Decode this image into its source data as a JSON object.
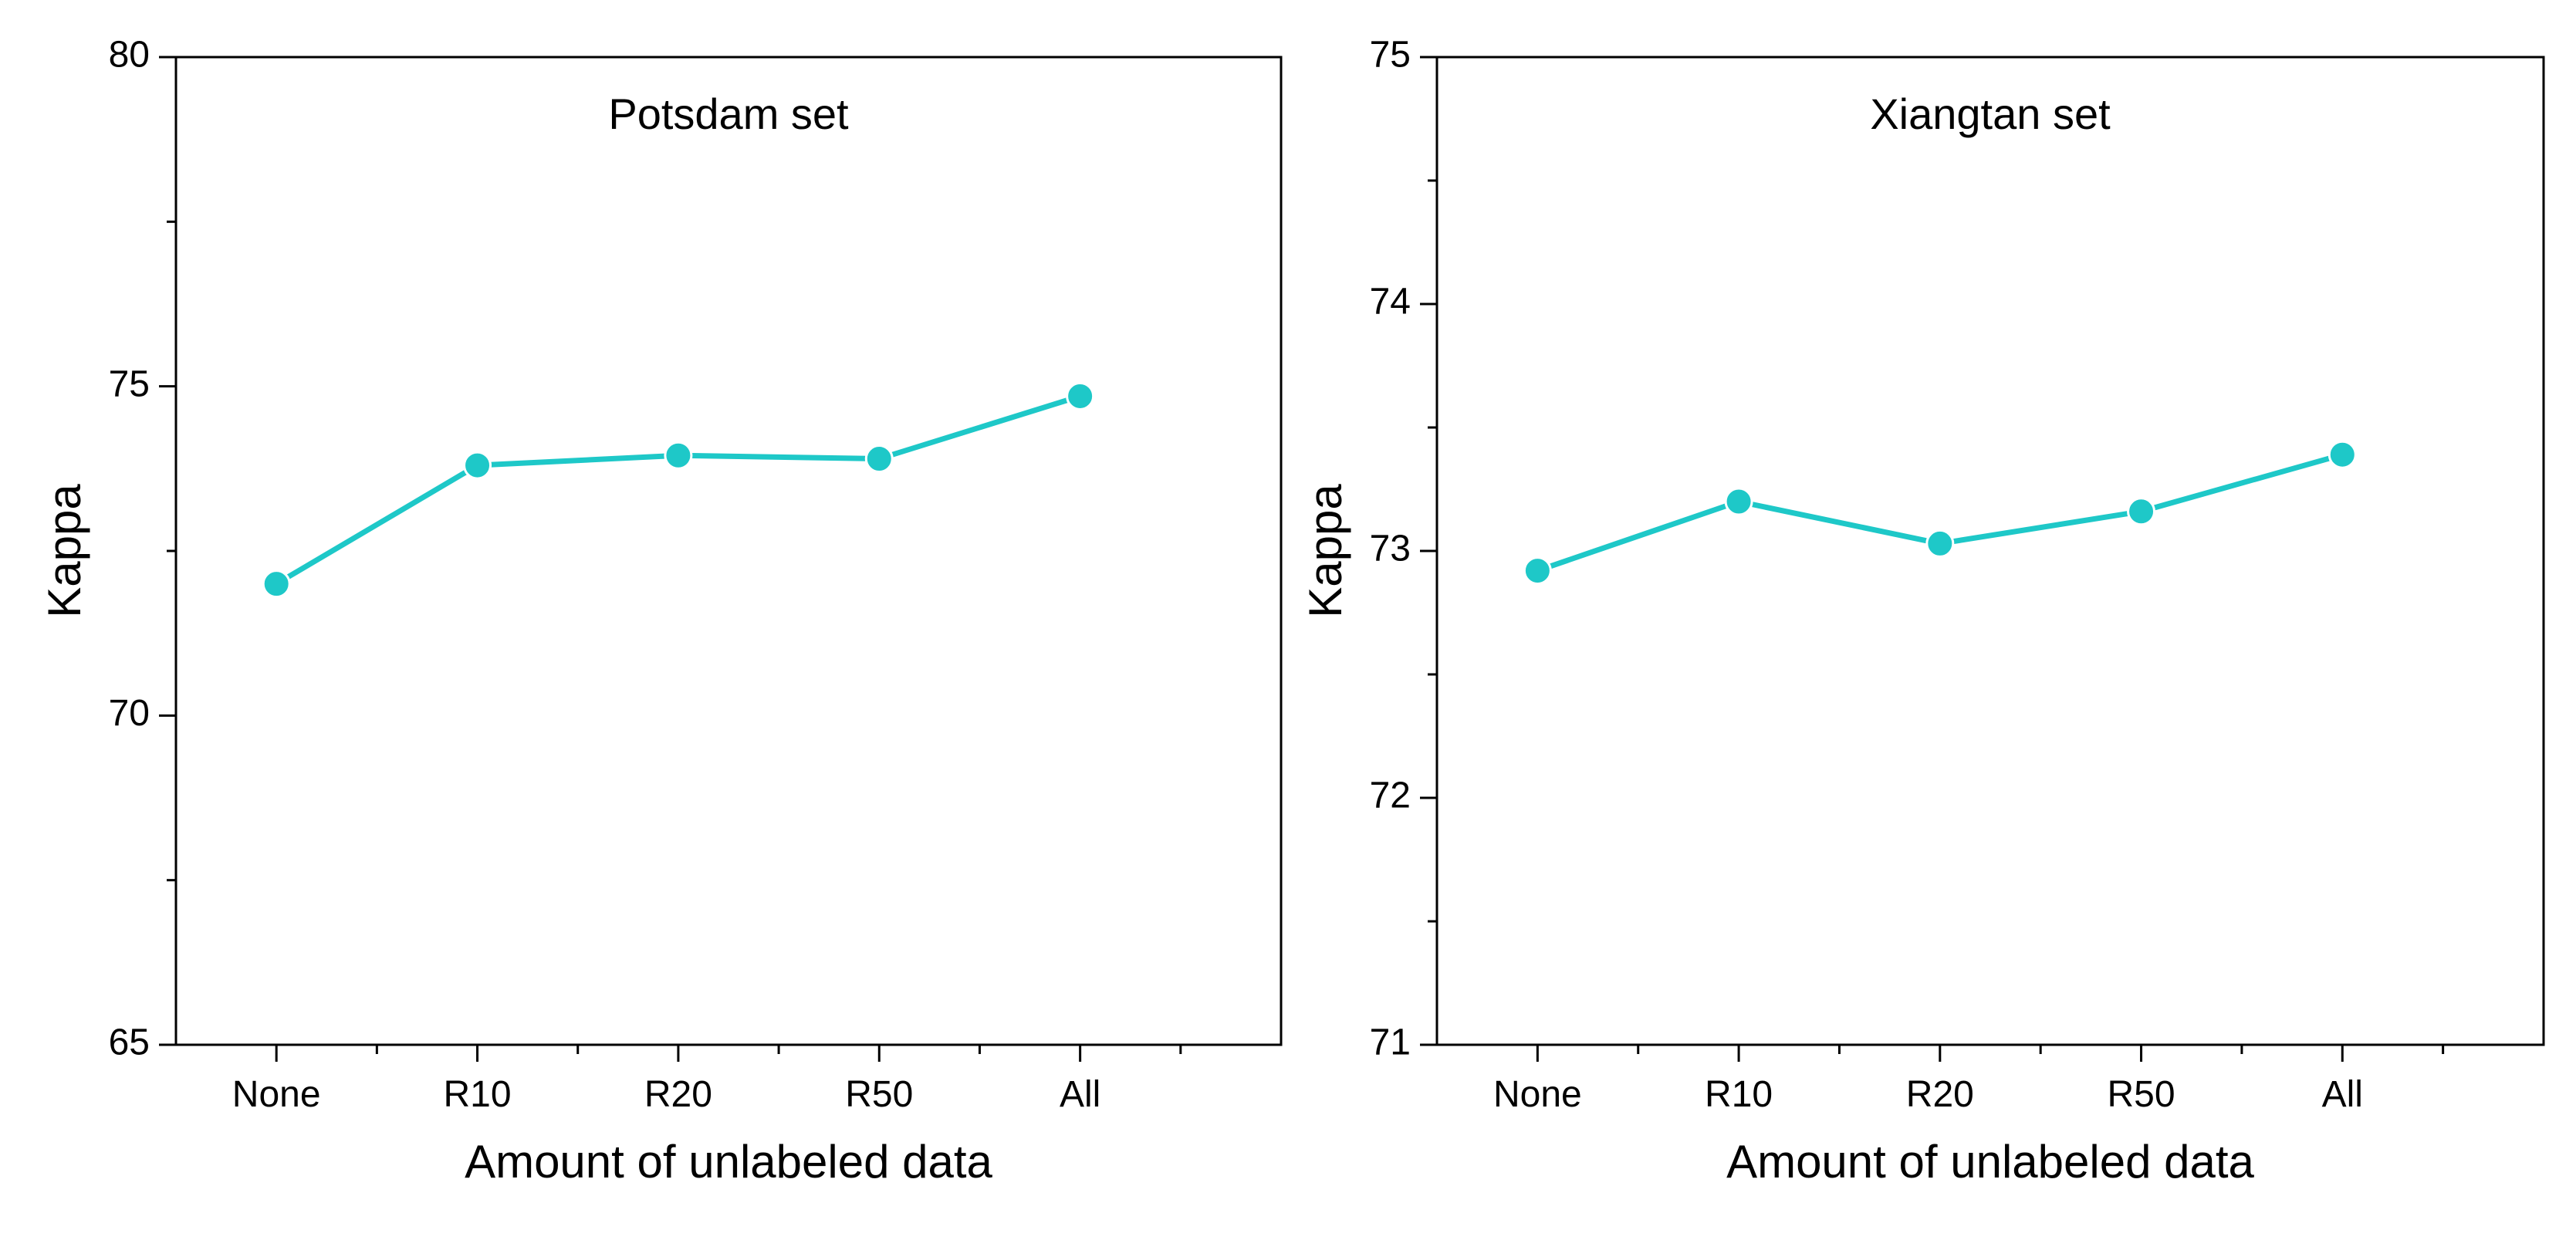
{
  "chart_data": [
    {
      "type": "line",
      "title": "Potsdam set",
      "xlabel": "Amount of unlabeled data",
      "ylabel": "Kappa",
      "categories": [
        "None",
        "R10",
        "R20",
        "R50",
        "All"
      ],
      "series": [
        {
          "values": [
            72.0,
            73.8,
            73.95,
            73.9,
            74.85
          ]
        }
      ],
      "ylim": [
        65,
        80
      ],
      "yticks": [
        65,
        70,
        75,
        80
      ],
      "yminor_step": 2.5,
      "grid": false,
      "color": "#1ec8c8"
    },
    {
      "type": "line",
      "title": "Xiangtan set",
      "xlabel": "Amount of unlabeled data",
      "ylabel": "Kappa",
      "categories": [
        "None",
        "R10",
        "R20",
        "R50",
        "All"
      ],
      "series": [
        {
          "values": [
            72.92,
            73.2,
            73.03,
            73.16,
            73.39
          ]
        }
      ],
      "ylim": [
        71,
        75
      ],
      "yticks": [
        71,
        72,
        73,
        74,
        75
      ],
      "yminor_step": 0.5,
      "grid": false,
      "color": "#1ec8c8"
    }
  ]
}
